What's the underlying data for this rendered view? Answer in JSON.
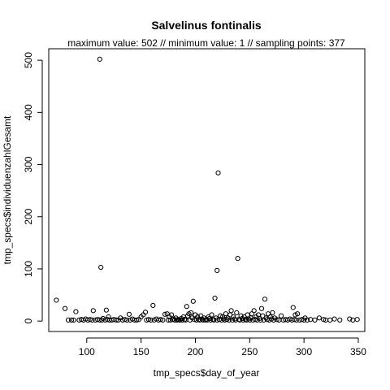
{
  "chart_data": {
    "type": "scatter",
    "title": "Salvelinus fontinalis",
    "subtitle": "maximum value: 502  //  minimum value: 1  // sampling points: 377",
    "xlabel": "tmp_specs$day_of_year",
    "ylabel": "tmp_specs$individuenzahlGesamt",
    "xlim": [
      65,
      356
    ],
    "ylim": [
      -20,
      522
    ],
    "xticks": [
      100,
      150,
      200,
      250,
      300,
      350
    ],
    "yticks": [
      0,
      100,
      200,
      300,
      400,
      500
    ],
    "grid": false,
    "marker": "open-circle",
    "points": [
      {
        "x": 72,
        "y": 40
      },
      {
        "x": 80,
        "y": 24
      },
      {
        "x": 83,
        "y": 2
      },
      {
        "x": 86,
        "y": 2
      },
      {
        "x": 88,
        "y": 2
      },
      {
        "x": 90,
        "y": 18
      },
      {
        "x": 93,
        "y": 2
      },
      {
        "x": 95,
        "y": 3
      },
      {
        "x": 97,
        "y": 2
      },
      {
        "x": 99,
        "y": 4
      },
      {
        "x": 101,
        "y": 2
      },
      {
        "x": 103,
        "y": 3
      },
      {
        "x": 105,
        "y": 2
      },
      {
        "x": 106,
        "y": 20
      },
      {
        "x": 108,
        "y": 2
      },
      {
        "x": 110,
        "y": 3
      },
      {
        "x": 112,
        "y": 2
      },
      {
        "x": 112,
        "y": 502
      },
      {
        "x": 113,
        "y": 103
      },
      {
        "x": 114,
        "y": 2
      },
      {
        "x": 115,
        "y": 5
      },
      {
        "x": 117,
        "y": 2
      },
      {
        "x": 118,
        "y": 21
      },
      {
        "x": 119,
        "y": 3
      },
      {
        "x": 120,
        "y": 8
      },
      {
        "x": 121,
        "y": 2
      },
      {
        "x": 123,
        "y": 2
      },
      {
        "x": 125,
        "y": 3
      },
      {
        "x": 127,
        "y": 2
      },
      {
        "x": 129,
        "y": 2
      },
      {
        "x": 131,
        "y": 6
      },
      {
        "x": 133,
        "y": 2
      },
      {
        "x": 135,
        "y": 3
      },
      {
        "x": 137,
        "y": 2
      },
      {
        "x": 139,
        "y": 13
      },
      {
        "x": 140,
        "y": 2
      },
      {
        "x": 142,
        "y": 4
      },
      {
        "x": 144,
        "y": 2
      },
      {
        "x": 146,
        "y": 2
      },
      {
        "x": 148,
        "y": 3
      },
      {
        "x": 150,
        "y": 8
      },
      {
        "x": 152,
        "y": 12
      },
      {
        "x": 154,
        "y": 17
      },
      {
        "x": 155,
        "y": 2
      },
      {
        "x": 157,
        "y": 3
      },
      {
        "x": 159,
        "y": 2
      },
      {
        "x": 161,
        "y": 30
      },
      {
        "x": 162,
        "y": 2
      },
      {
        "x": 164,
        "y": 4
      },
      {
        "x": 166,
        "y": 2
      },
      {
        "x": 168,
        "y": 3
      },
      {
        "x": 170,
        "y": 2
      },
      {
        "x": 172,
        "y": 13
      },
      {
        "x": 174,
        "y": 14
      },
      {
        "x": 175,
        "y": 2
      },
      {
        "x": 176,
        "y": 8
      },
      {
        "x": 177,
        "y": 2
      },
      {
        "x": 178,
        "y": 12
      },
      {
        "x": 179,
        "y": 3
      },
      {
        "x": 180,
        "y": 4
      },
      {
        "x": 181,
        "y": 2
      },
      {
        "x": 182,
        "y": 6
      },
      {
        "x": 183,
        "y": 2
      },
      {
        "x": 184,
        "y": 3
      },
      {
        "x": 185,
        "y": 2
      },
      {
        "x": 186,
        "y": 2
      },
      {
        "x": 187,
        "y": 5
      },
      {
        "x": 188,
        "y": 2
      },
      {
        "x": 189,
        "y": 8
      },
      {
        "x": 190,
        "y": 3
      },
      {
        "x": 191,
        "y": 2
      },
      {
        "x": 192,
        "y": 28
      },
      {
        "x": 193,
        "y": 10
      },
      {
        "x": 194,
        "y": 14
      },
      {
        "x": 195,
        "y": 2
      },
      {
        "x": 196,
        "y": 16
      },
      {
        "x": 197,
        "y": 6
      },
      {
        "x": 198,
        "y": 38
      },
      {
        "x": 199,
        "y": 3
      },
      {
        "x": 200,
        "y": 12
      },
      {
        "x": 201,
        "y": 2
      },
      {
        "x": 202,
        "y": 8
      },
      {
        "x": 203,
        "y": 3
      },
      {
        "x": 204,
        "y": 2
      },
      {
        "x": 205,
        "y": 10
      },
      {
        "x": 206,
        "y": 4
      },
      {
        "x": 207,
        "y": 2
      },
      {
        "x": 208,
        "y": 6
      },
      {
        "x": 209,
        "y": 2
      },
      {
        "x": 210,
        "y": 3
      },
      {
        "x": 211,
        "y": 2
      },
      {
        "x": 212,
        "y": 8
      },
      {
        "x": 213,
        "y": 5
      },
      {
        "x": 214,
        "y": 2
      },
      {
        "x": 215,
        "y": 12
      },
      {
        "x": 216,
        "y": 3
      },
      {
        "x": 217,
        "y": 2
      },
      {
        "x": 218,
        "y": 44
      },
      {
        "x": 219,
        "y": 6
      },
      {
        "x": 220,
        "y": 2
      },
      {
        "x": 220,
        "y": 97
      },
      {
        "x": 221,
        "y": 284
      },
      {
        "x": 222,
        "y": 3
      },
      {
        "x": 223,
        "y": 10
      },
      {
        "x": 224,
        "y": 2
      },
      {
        "x": 225,
        "y": 8
      },
      {
        "x": 226,
        "y": 4
      },
      {
        "x": 227,
        "y": 2
      },
      {
        "x": 228,
        "y": 14
      },
      {
        "x": 229,
        "y": 3
      },
      {
        "x": 230,
        "y": 6
      },
      {
        "x": 231,
        "y": 2
      },
      {
        "x": 232,
        "y": 12
      },
      {
        "x": 233,
        "y": 20
      },
      {
        "x": 234,
        "y": 2
      },
      {
        "x": 235,
        "y": 8
      },
      {
        "x": 236,
        "y": 4
      },
      {
        "x": 237,
        "y": 2
      },
      {
        "x": 238,
        "y": 16
      },
      {
        "x": 239,
        "y": 120
      },
      {
        "x": 240,
        "y": 3
      },
      {
        "x": 241,
        "y": 2
      },
      {
        "x": 242,
        "y": 10
      },
      {
        "x": 243,
        "y": 5
      },
      {
        "x": 244,
        "y": 2
      },
      {
        "x": 245,
        "y": 8
      },
      {
        "x": 246,
        "y": 3
      },
      {
        "x": 247,
        "y": 2
      },
      {
        "x": 248,
        "y": 12
      },
      {
        "x": 249,
        "y": 4
      },
      {
        "x": 250,
        "y": 2
      },
      {
        "x": 251,
        "y": 6
      },
      {
        "x": 252,
        "y": 14
      },
      {
        "x": 253,
        "y": 2
      },
      {
        "x": 254,
        "y": 20
      },
      {
        "x": 255,
        "y": 3
      },
      {
        "x": 256,
        "y": 8
      },
      {
        "x": 257,
        "y": 2
      },
      {
        "x": 258,
        "y": 12
      },
      {
        "x": 259,
        "y": 5
      },
      {
        "x": 260,
        "y": 2
      },
      {
        "x": 261,
        "y": 24
      },
      {
        "x": 262,
        "y": 10
      },
      {
        "x": 263,
        "y": 2
      },
      {
        "x": 264,
        "y": 42
      },
      {
        "x": 265,
        "y": 6
      },
      {
        "x": 266,
        "y": 3
      },
      {
        "x": 267,
        "y": 14
      },
      {
        "x": 268,
        "y": 2
      },
      {
        "x": 269,
        "y": 8
      },
      {
        "x": 270,
        "y": 4
      },
      {
        "x": 271,
        "y": 16
      },
      {
        "x": 272,
        "y": 2
      },
      {
        "x": 273,
        "y": 6
      },
      {
        "x": 275,
        "y": 3
      },
      {
        "x": 277,
        "y": 2
      },
      {
        "x": 279,
        "y": 10
      },
      {
        "x": 281,
        "y": 2
      },
      {
        "x": 283,
        "y": 3
      },
      {
        "x": 285,
        "y": 2
      },
      {
        "x": 287,
        "y": 4
      },
      {
        "x": 289,
        "y": 2
      },
      {
        "x": 290,
        "y": 26
      },
      {
        "x": 291,
        "y": 3
      },
      {
        "x": 292,
        "y": 12
      },
      {
        "x": 293,
        "y": 2
      },
      {
        "x": 294,
        "y": 14
      },
      {
        "x": 296,
        "y": 2
      },
      {
        "x": 298,
        "y": 3
      },
      {
        "x": 300,
        "y": 2
      },
      {
        "x": 301,
        "y": 6
      },
      {
        "x": 303,
        "y": 2
      },
      {
        "x": 306,
        "y": 3
      },
      {
        "x": 310,
        "y": 2
      },
      {
        "x": 314,
        "y": 6
      },
      {
        "x": 318,
        "y": 3
      },
      {
        "x": 320,
        "y": 2
      },
      {
        "x": 324,
        "y": 2
      },
      {
        "x": 328,
        "y": 4
      },
      {
        "x": 333,
        "y": 2
      },
      {
        "x": 342,
        "y": 4
      },
      {
        "x": 345,
        "y": 2
      },
      {
        "x": 349,
        "y": 3
      }
    ]
  }
}
